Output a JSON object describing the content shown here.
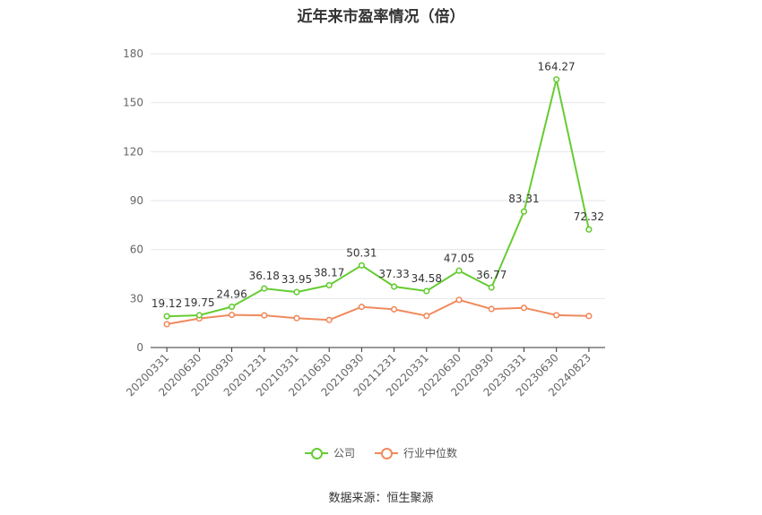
{
  "title": "近年来市盈率情况（倍）",
  "source": "数据来源：恒生聚源",
  "chart_data": {
    "type": "line",
    "title": "近年来市盈率情况（倍）",
    "categories": [
      "20200331",
      "20200630",
      "20200930",
      "20201231",
      "20210331",
      "20210630",
      "20210930",
      "20211231",
      "20220331",
      "20220630",
      "20220930",
      "20230331",
      "20230630",
      "20240823"
    ],
    "ylim": [
      0,
      180
    ],
    "yticks": [
      0,
      30,
      60,
      90,
      120,
      150,
      180
    ],
    "grid": true,
    "legend_position": "bottom",
    "series": [
      {
        "name": "公司",
        "color": "#66cc33",
        "values": [
          19.12,
          19.75,
          24.96,
          36.18,
          33.95,
          38.17,
          50.31,
          37.33,
          34.58,
          47.05,
          36.77,
          83.31,
          164.27,
          72.32
        ],
        "labels": [
          "19.12",
          "19.75",
          "24.96",
          "36.18",
          "33.95",
          "38.17",
          "50.31",
          "37.33",
          "34.58",
          "47.05",
          "36.77",
          "83.31",
          "164.27",
          "72.32"
        ]
      },
      {
        "name": "行业中位数",
        "color": "#f08a5d",
        "values": [
          14.3,
          17.8,
          20.0,
          19.7,
          18.0,
          16.9,
          24.9,
          23.4,
          19.4,
          29.2,
          23.6,
          24.3,
          19.8,
          19.3
        ]
      }
    ]
  }
}
